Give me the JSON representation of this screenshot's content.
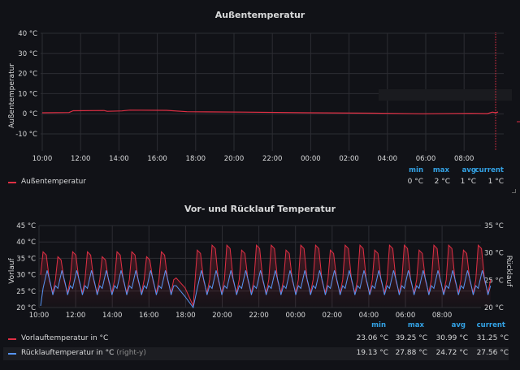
{
  "panels": {
    "outside": {
      "title": "Außentemperatur",
      "y_axis_label": "Außentemperatur",
      "y_ticks": [
        "40 °C",
        "30 °C",
        "20 °C",
        "10 °C",
        "0 °C",
        "-10 °C"
      ],
      "x_ticks": [
        "10:00",
        "12:00",
        "14:00",
        "16:00",
        "18:00",
        "20:00",
        "22:00",
        "00:00",
        "02:00",
        "04:00",
        "06:00",
        "08:00"
      ],
      "legend_headers": {
        "min": "min",
        "max": "max",
        "avg": "avg",
        "current": "current"
      },
      "series": [
        {
          "name": "Außentemperatur",
          "color": "#e02f44",
          "min": "0 °C",
          "max": "2 °C",
          "avg": "1 °C",
          "current": "1 °C"
        }
      ]
    },
    "flow": {
      "title": "Vor- und Rücklauf Temperatur",
      "y_axis_label_left": "Vorlauf",
      "y_axis_label_right": "Rücklauf",
      "y_ticks_left": [
        "45 °C",
        "40 °C",
        "35 °C",
        "30 °C",
        "25 °C",
        "20 °C"
      ],
      "y_ticks_right": [
        "35 °C",
        "30 °C",
        "25 °C",
        "20 °C"
      ],
      "x_ticks": [
        "10:00",
        "12:00",
        "14:00",
        "16:00",
        "18:00",
        "20:00",
        "22:00",
        "00:00",
        "02:00",
        "04:00",
        "06:00",
        "08:00"
      ],
      "legend_headers": {
        "min": "min",
        "max": "max",
        "avg": "avg",
        "current": "current"
      },
      "series": [
        {
          "name": "Vorlauftemperatur in °C",
          "suffix": "",
          "color": "#e02f44",
          "min": "23.06 °C",
          "max": "39.25 °C",
          "avg": "30.99 °C",
          "current": "31.25 °C"
        },
        {
          "name": "Rücklauftemperatur in °C",
          "suffix": "(right-y)",
          "color": "#5794f2",
          "min": "19.13 °C",
          "max": "27.88 °C",
          "avg": "24.72 °C",
          "current": "27.56 °C"
        }
      ]
    }
  }
}
